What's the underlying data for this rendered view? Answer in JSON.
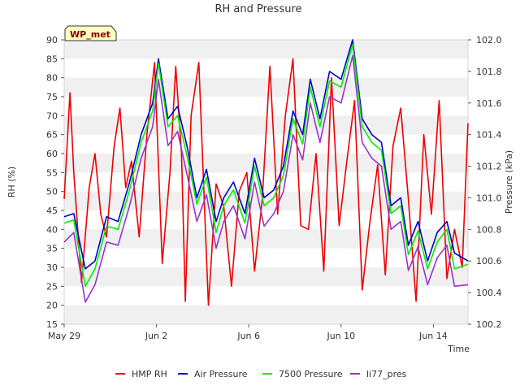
{
  "chart_data": {
    "type": "line",
    "title": "RH and Pressure",
    "badge": "WP_met",
    "xlabel": "Time",
    "ylabel": "RH (%)",
    "y2label": "Pressure (kPa)",
    "x_start": "2023-05-29",
    "x_end": "2023-06-15 12:00",
    "x_ticks": [
      "May 29",
      "Jun 2",
      "Jun 6",
      "Jun 10",
      "Jun 14"
    ],
    "x_tick_dates": [
      "2023-05-29",
      "2023-06-02",
      "2023-06-06",
      "2023-06-10",
      "2023-06-14"
    ],
    "ylim": [
      15,
      90
    ],
    "y_ticks": [
      15,
      20,
      25,
      30,
      35,
      40,
      45,
      50,
      55,
      60,
      65,
      70,
      75,
      80,
      85,
      90
    ],
    "y2lim": [
      100.2,
      102.0
    ],
    "y2_ticks": [
      100.2,
      100.4,
      100.6,
      100.8,
      101.0,
      101.2,
      101.4,
      101.6,
      101.8,
      102.0
    ],
    "grid": "horizontal bands",
    "legend_position": "bottom",
    "series": [
      {
        "name": "HMP RH",
        "axis": "left",
        "color": "#ee0000",
        "points": [
          [
            "2023-05-29 00:00",
            48
          ],
          [
            "2023-05-29 06:00",
            76
          ],
          [
            "2023-05-29 10:00",
            55
          ],
          [
            "2023-05-29 18:00",
            26
          ],
          [
            "2023-05-30 02:00",
            51
          ],
          [
            "2023-05-30 08:00",
            60
          ],
          [
            "2023-05-30 14:00",
            44
          ],
          [
            "2023-05-30 20:00",
            38
          ],
          [
            "2023-05-31 04:00",
            62
          ],
          [
            "2023-05-31 10:00",
            72
          ],
          [
            "2023-05-31 16:00",
            51
          ],
          [
            "2023-05-31 22:00",
            58
          ],
          [
            "2023-06-01 06:00",
            38
          ],
          [
            "2023-06-01 14:00",
            65
          ],
          [
            "2023-06-01 22:00",
            84
          ],
          [
            "2023-06-02 06:00",
            31
          ],
          [
            "2023-06-02 14:00",
            55
          ],
          [
            "2023-06-02 20:00",
            83
          ],
          [
            "2023-06-03 02:00",
            60
          ],
          [
            "2023-06-03 06:00",
            21
          ],
          [
            "2023-06-03 12:00",
            70
          ],
          [
            "2023-06-03 20:00",
            84
          ],
          [
            "2023-06-04 06:00",
            20
          ],
          [
            "2023-06-04 14:00",
            52
          ],
          [
            "2023-06-04 22:00",
            46
          ],
          [
            "2023-06-05 06:00",
            25
          ],
          [
            "2023-06-05 14:00",
            50
          ],
          [
            "2023-06-05 22:00",
            55
          ],
          [
            "2023-06-06 06:00",
            29
          ],
          [
            "2023-06-06 14:00",
            48
          ],
          [
            "2023-06-06 22:00",
            83
          ],
          [
            "2023-06-07 06:00",
            44
          ],
          [
            "2023-06-07 14:00",
            70
          ],
          [
            "2023-06-07 22:00",
            85
          ],
          [
            "2023-06-08 06:00",
            41
          ],
          [
            "2023-06-08 14:00",
            40
          ],
          [
            "2023-06-08 22:00",
            60
          ],
          [
            "2023-06-09 06:00",
            29
          ],
          [
            "2023-06-09 14:00",
            80
          ],
          [
            "2023-06-09 22:00",
            41
          ],
          [
            "2023-06-10 06:00",
            58
          ],
          [
            "2023-06-10 14:00",
            74
          ],
          [
            "2023-06-10 22:00",
            24
          ],
          [
            "2023-06-11 06:00",
            42
          ],
          [
            "2023-06-11 14:00",
            57
          ],
          [
            "2023-06-11 22:00",
            28
          ],
          [
            "2023-06-12 06:00",
            62
          ],
          [
            "2023-06-12 14:00",
            72
          ],
          [
            "2023-06-12 22:00",
            48
          ],
          [
            "2023-06-13 06:00",
            21
          ],
          [
            "2023-06-13 14:00",
            65
          ],
          [
            "2023-06-13 22:00",
            44
          ],
          [
            "2023-06-14 06:00",
            74
          ],
          [
            "2023-06-14 14:00",
            27
          ],
          [
            "2023-06-14 22:00",
            40
          ],
          [
            "2023-06-15 06:00",
            30
          ],
          [
            "2023-06-15 12:00",
            68
          ]
        ]
      },
      {
        "name": "Air Pressure",
        "axis": "right",
        "color": "#0000cc",
        "points": [
          [
            "2023-05-29 00:00",
            100.88
          ],
          [
            "2023-05-29 10:00",
            100.9
          ],
          [
            "2023-05-29 22:00",
            100.55
          ],
          [
            "2023-05-30 08:00",
            100.6
          ],
          [
            "2023-05-30 20:00",
            100.88
          ],
          [
            "2023-05-31 08:00",
            100.85
          ],
          [
            "2023-05-31 20:00",
            101.1
          ],
          [
            "2023-06-01 08:00",
            101.4
          ],
          [
            "2023-06-01 20:00",
            101.6
          ],
          [
            "2023-06-02 02:00",
            101.88
          ],
          [
            "2023-06-02 12:00",
            101.5
          ],
          [
            "2023-06-02 22:00",
            101.58
          ],
          [
            "2023-06-03 08:00",
            101.32
          ],
          [
            "2023-06-03 18:00",
            101.0
          ],
          [
            "2023-06-04 04:00",
            101.18
          ],
          [
            "2023-06-04 14:00",
            100.85
          ],
          [
            "2023-06-04 22:00",
            101.0
          ],
          [
            "2023-06-05 08:00",
            101.1
          ],
          [
            "2023-06-05 20:00",
            100.9
          ],
          [
            "2023-06-06 06:00",
            101.25
          ],
          [
            "2023-06-06 16:00",
            101.0
          ],
          [
            "2023-06-07 02:00",
            101.05
          ],
          [
            "2023-06-07 12:00",
            101.2
          ],
          [
            "2023-06-07 22:00",
            101.55
          ],
          [
            "2023-06-08 08:00",
            101.4
          ],
          [
            "2023-06-08 16:00",
            101.75
          ],
          [
            "2023-06-09 02:00",
            101.5
          ],
          [
            "2023-06-09 12:00",
            101.8
          ],
          [
            "2023-06-10 00:00",
            101.75
          ],
          [
            "2023-06-10 12:00",
            102.0
          ],
          [
            "2023-06-10 22:00",
            101.5
          ],
          [
            "2023-06-11 08:00",
            101.4
          ],
          [
            "2023-06-11 18:00",
            101.35
          ],
          [
            "2023-06-12 04:00",
            100.95
          ],
          [
            "2023-06-12 14:00",
            101.0
          ],
          [
            "2023-06-12 22:00",
            100.7
          ],
          [
            "2023-06-13 08:00",
            100.85
          ],
          [
            "2023-06-13 18:00",
            100.6
          ],
          [
            "2023-06-14 04:00",
            100.78
          ],
          [
            "2023-06-14 14:00",
            100.85
          ],
          [
            "2023-06-14 22:00",
            100.65
          ],
          [
            "2023-06-15 12:00",
            100.6
          ]
        ]
      },
      {
        "name": "7500 Pressure",
        "axis": "right",
        "color": "#00ee00",
        "points": [
          [
            "2023-05-29 00:00",
            100.84
          ],
          [
            "2023-05-29 10:00",
            100.86
          ],
          [
            "2023-05-29 22:00",
            100.44
          ],
          [
            "2023-05-30 08:00",
            100.55
          ],
          [
            "2023-05-30 20:00",
            100.82
          ],
          [
            "2023-05-31 08:00",
            100.8
          ],
          [
            "2023-05-31 20:00",
            101.05
          ],
          [
            "2023-06-01 08:00",
            101.35
          ],
          [
            "2023-06-01 20:00",
            101.55
          ],
          [
            "2023-06-02 02:00",
            101.85
          ],
          [
            "2023-06-02 12:00",
            101.45
          ],
          [
            "2023-06-02 22:00",
            101.52
          ],
          [
            "2023-06-03 08:00",
            101.26
          ],
          [
            "2023-06-03 18:00",
            100.96
          ],
          [
            "2023-06-04 04:00",
            101.13
          ],
          [
            "2023-06-04 14:00",
            100.78
          ],
          [
            "2023-06-04 22:00",
            100.95
          ],
          [
            "2023-06-05 08:00",
            101.05
          ],
          [
            "2023-06-05 20:00",
            100.84
          ],
          [
            "2023-06-06 06:00",
            101.2
          ],
          [
            "2023-06-06 16:00",
            100.95
          ],
          [
            "2023-06-07 02:00",
            101.0
          ],
          [
            "2023-06-07 12:00",
            101.14
          ],
          [
            "2023-06-07 22:00",
            101.5
          ],
          [
            "2023-06-08 08:00",
            101.34
          ],
          [
            "2023-06-08 16:00",
            101.7
          ],
          [
            "2023-06-09 02:00",
            101.45
          ],
          [
            "2023-06-09 12:00",
            101.74
          ],
          [
            "2023-06-10 00:00",
            101.7
          ],
          [
            "2023-06-10 12:00",
            101.97
          ],
          [
            "2023-06-10 22:00",
            101.45
          ],
          [
            "2023-06-11 08:00",
            101.35
          ],
          [
            "2023-06-11 18:00",
            101.3
          ],
          [
            "2023-06-12 04:00",
            100.9
          ],
          [
            "2023-06-12 14:00",
            100.95
          ],
          [
            "2023-06-12 22:00",
            100.64
          ],
          [
            "2023-06-13 08:00",
            100.79
          ],
          [
            "2023-06-13 18:00",
            100.55
          ],
          [
            "2023-06-14 04:00",
            100.72
          ],
          [
            "2023-06-14 14:00",
            100.8
          ],
          [
            "2023-06-14 22:00",
            100.55
          ],
          [
            "2023-06-15 12:00",
            100.58
          ]
        ]
      },
      {
        "name": "li77_pres",
        "axis": "right",
        "color": "#9933cc",
        "points": [
          [
            "2023-05-29 00:00",
            100.72
          ],
          [
            "2023-05-29 10:00",
            100.78
          ],
          [
            "2023-05-29 22:00",
            100.34
          ],
          [
            "2023-05-30 08:00",
            100.45
          ],
          [
            "2023-05-30 20:00",
            100.72
          ],
          [
            "2023-05-31 08:00",
            100.7
          ],
          [
            "2023-05-31 20:00",
            100.95
          ],
          [
            "2023-06-01 08:00",
            101.25
          ],
          [
            "2023-06-01 20:00",
            101.45
          ],
          [
            "2023-06-02 02:00",
            101.75
          ],
          [
            "2023-06-02 12:00",
            101.33
          ],
          [
            "2023-06-02 22:00",
            101.42
          ],
          [
            "2023-06-03 08:00",
            101.14
          ],
          [
            "2023-06-03 18:00",
            100.85
          ],
          [
            "2023-06-04 04:00",
            101.02
          ],
          [
            "2023-06-04 14:00",
            100.68
          ],
          [
            "2023-06-04 22:00",
            100.85
          ],
          [
            "2023-06-05 08:00",
            100.95
          ],
          [
            "2023-06-05 20:00",
            100.74
          ],
          [
            "2023-06-06 06:00",
            101.1
          ],
          [
            "2023-06-06 16:00",
            100.82
          ],
          [
            "2023-06-07 02:00",
            100.9
          ],
          [
            "2023-06-07 12:00",
            101.04
          ],
          [
            "2023-06-07 22:00",
            101.4
          ],
          [
            "2023-06-08 08:00",
            101.24
          ],
          [
            "2023-06-08 16:00",
            101.6
          ],
          [
            "2023-06-09 02:00",
            101.35
          ],
          [
            "2023-06-09 12:00",
            101.64
          ],
          [
            "2023-06-10 00:00",
            101.6
          ],
          [
            "2023-06-10 12:00",
            101.9
          ],
          [
            "2023-06-10 22:00",
            101.35
          ],
          [
            "2023-06-11 08:00",
            101.25
          ],
          [
            "2023-06-11 18:00",
            101.2
          ],
          [
            "2023-06-12 04:00",
            100.8
          ],
          [
            "2023-06-12 14:00",
            100.85
          ],
          [
            "2023-06-12 22:00",
            100.54
          ],
          [
            "2023-06-13 08:00",
            100.69
          ],
          [
            "2023-06-13 18:00",
            100.45
          ],
          [
            "2023-06-14 04:00",
            100.62
          ],
          [
            "2023-06-14 14:00",
            100.7
          ],
          [
            "2023-06-14 22:00",
            100.44
          ],
          [
            "2023-06-15 12:00",
            100.45
          ]
        ]
      }
    ]
  }
}
